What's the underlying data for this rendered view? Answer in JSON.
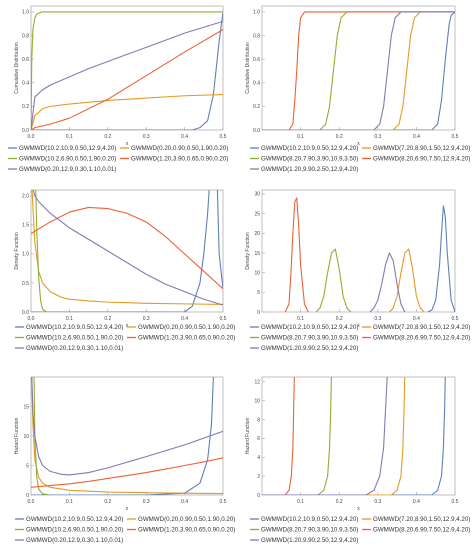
{
  "colors": {
    "blue": "#5e81b5",
    "orange": "#e19c24",
    "green": "#8fb032",
    "red": "#eb6235",
    "purple": "#8778b3",
    "frame": "#b0b0b0",
    "text": "#444444"
  },
  "legend_left": [
    {
      "label": "GWMWD(10.2,10.9,0.50,12.9,4.20)",
      "color": "blue"
    },
    {
      "label": "GWMWD(0.20,0.90,0.50,1.90,0.20)",
      "color": "orange"
    },
    {
      "label": "GWMWD(10.2,6.90,0.50,1.90,0.20)",
      "color": "green"
    },
    {
      "label": "GWMWD(1.20,3.90,0.65,0.90,0.20)",
      "color": "red"
    },
    {
      "label": "GWMWD(0.20,12.9,0.30,1.10,0.01)",
      "color": "purple"
    }
  ],
  "legend_right": [
    {
      "label": "GWMWD(10.2,10.9,0.50,12.9,4.20)",
      "color": "blue"
    },
    {
      "label": "GWMWD(7.20,8.90,1.50,12.9,4.20)",
      "color": "orange"
    },
    {
      "label": "GWMWD(8.20,7.90,3.90,10.9,3.50)",
      "color": "green"
    },
    {
      "label": "GWMWD(8.20,6.90,7.50,12.9,4.20)",
      "color": "red"
    },
    {
      "label": "GWMWD(1.20,9.90,2.50,12.9,4.20)",
      "color": "purple"
    }
  ],
  "chart_data": [
    {
      "type": "line",
      "ylabel": "Cumulative Distribution",
      "xlabel": "x",
      "xlim": [
        0,
        0.5
      ],
      "ylim": [
        0,
        1.05
      ],
      "x_ticks": [
        "0.0",
        "0.1",
        "0.2",
        "0.3",
        "0.4",
        "0.5"
      ],
      "y_ticks": [
        "0.0",
        "0.2",
        "0.4",
        "0.6",
        "0.8",
        "1.0"
      ],
      "series": [
        {
          "color": "blue",
          "x": [
            0,
            0.42,
            0.44,
            0.46,
            0.475,
            0.49,
            0.5
          ],
          "y": [
            0,
            0,
            0.02,
            0.08,
            0.3,
            0.75,
            1.0
          ]
        },
        {
          "color": "orange",
          "x": [
            0,
            0.01,
            0.03,
            0.05,
            0.1,
            0.2,
            0.3,
            0.4,
            0.5
          ],
          "y": [
            0,
            0.12,
            0.18,
            0.2,
            0.22,
            0.25,
            0.27,
            0.29,
            0.3
          ]
        },
        {
          "color": "green",
          "x": [
            0,
            0.002,
            0.005,
            0.01,
            0.015,
            0.02,
            0.03,
            0.5
          ],
          "y": [
            0,
            0.6,
            0.85,
            0.95,
            0.98,
            0.99,
            1.0,
            1.0
          ]
        },
        {
          "color": "red",
          "x": [
            0,
            0.01,
            0.05,
            0.1,
            0.2,
            0.3,
            0.4,
            0.5
          ],
          "y": [
            0,
            0.02,
            0.05,
            0.1,
            0.26,
            0.46,
            0.66,
            0.85
          ]
        },
        {
          "color": "purple",
          "x": [
            0,
            0.01,
            0.03,
            0.05,
            0.1,
            0.15,
            0.2,
            0.25,
            0.3,
            0.35,
            0.4,
            0.45,
            0.5
          ],
          "y": [
            0,
            0.28,
            0.34,
            0.38,
            0.45,
            0.52,
            0.58,
            0.64,
            0.7,
            0.76,
            0.82,
            0.87,
            0.92
          ]
        }
      ]
    },
    {
      "type": "line",
      "ylabel": "Cumulative Distribution",
      "xlabel": "x",
      "xlim": [
        0,
        0.5
      ],
      "ylim": [
        0,
        1.05
      ],
      "x_ticks": [
        "0.1",
        "0.2",
        "0.3",
        "0.4",
        "0.5"
      ],
      "y_ticks": [
        "0.0",
        "0.2",
        "0.4",
        "0.6",
        "0.8",
        "1.0"
      ],
      "series": [
        {
          "color": "blue",
          "x": [
            0,
            0.44,
            0.455,
            0.465,
            0.475,
            0.485,
            0.49,
            0.5
          ],
          "y": [
            0,
            0,
            0.05,
            0.25,
            0.6,
            0.9,
            0.97,
            1.0
          ]
        },
        {
          "color": "orange",
          "x": [
            0,
            0.34,
            0.355,
            0.365,
            0.375,
            0.385,
            0.395,
            0.41,
            0.5
          ],
          "y": [
            0,
            0,
            0.05,
            0.2,
            0.5,
            0.8,
            0.95,
            1.0,
            1.0
          ]
        },
        {
          "color": "green",
          "x": [
            0,
            0.15,
            0.165,
            0.175,
            0.185,
            0.195,
            0.205,
            0.22,
            0.5
          ],
          "y": [
            0,
            0,
            0.05,
            0.2,
            0.5,
            0.8,
            0.95,
            1.0,
            1.0
          ]
        },
        {
          "color": "red",
          "x": [
            0,
            0.07,
            0.08,
            0.085,
            0.09,
            0.095,
            0.1,
            0.11,
            0.5
          ],
          "y": [
            0,
            0,
            0.05,
            0.25,
            0.5,
            0.8,
            0.95,
            1.0,
            1.0
          ]
        },
        {
          "color": "purple",
          "x": [
            0,
            0.29,
            0.305,
            0.315,
            0.325,
            0.335,
            0.345,
            0.36,
            0.5
          ],
          "y": [
            0,
            0,
            0.05,
            0.2,
            0.5,
            0.8,
            0.95,
            1.0,
            1.0
          ]
        }
      ]
    },
    {
      "type": "line",
      "ylabel": "Density Function",
      "xlabel": "x",
      "xlim": [
        0,
        0.5
      ],
      "ylim": [
        0,
        2.1
      ],
      "x_ticks": [
        "0.0",
        "0.1",
        "0.2",
        "0.3",
        "0.4",
        "0.5"
      ],
      "y_ticks": [
        "0.0",
        "0.5",
        "1.0",
        "1.5",
        "2.0"
      ],
      "series": [
        {
          "color": "blue",
          "x": [
            0,
            0.4,
            0.42,
            0.44,
            0.45,
            0.46,
            0.465
          ],
          "y": [
            0,
            0,
            0.1,
            0.5,
            1.0,
            1.7,
            2.2
          ]
        },
        {
          "color": "blue",
          "x": [
            0.485,
            0.49,
            0.5
          ],
          "y": [
            2.2,
            1.0,
            0.4
          ]
        },
        {
          "color": "orange",
          "x": [
            0.002,
            0.005,
            0.01,
            0.02,
            0.03,
            0.05,
            0.08,
            0.1,
            0.15,
            0.2,
            0.3,
            0.4,
            0.5
          ],
          "y": [
            2.2,
            1.8,
            1.2,
            0.7,
            0.5,
            0.35,
            0.25,
            0.22,
            0.19,
            0.17,
            0.15,
            0.14,
            0.13
          ]
        },
        {
          "color": "green",
          "x": [
            0.012,
            0.015,
            0.02,
            0.025,
            0.03,
            0.04
          ],
          "y": [
            2.2,
            1.4,
            0.6,
            0.2,
            0.05,
            0
          ]
        },
        {
          "color": "red",
          "x": [
            0,
            0.05,
            0.1,
            0.15,
            0.2,
            0.25,
            0.3,
            0.35,
            0.4,
            0.45,
            0.5
          ],
          "y": [
            1.35,
            1.55,
            1.72,
            1.8,
            1.78,
            1.7,
            1.55,
            1.3,
            1.0,
            0.7,
            0.4
          ]
        },
        {
          "color": "purple",
          "x": [
            0.002,
            0.01,
            0.02,
            0.05,
            0.1,
            0.15,
            0.2,
            0.25,
            0.3,
            0.35,
            0.4,
            0.45,
            0.5
          ],
          "y": [
            2.2,
            2.0,
            1.9,
            1.7,
            1.45,
            1.25,
            1.05,
            0.85,
            0.65,
            0.48,
            0.35,
            0.22,
            0.12
          ]
        }
      ]
    },
    {
      "type": "line",
      "ylabel": "Density Function",
      "xlabel": "x",
      "xlim": [
        0,
        0.5
      ],
      "ylim": [
        0,
        31
      ],
      "x_ticks": [
        "0.1",
        "0.2",
        "0.3",
        "0.4",
        "0.5"
      ],
      "y_ticks": [
        "0",
        "5",
        "10",
        "15",
        "20",
        "25",
        "30"
      ],
      "series": [
        {
          "color": "blue",
          "x": [
            0.43,
            0.44,
            0.45,
            0.46,
            0.465,
            0.47,
            0.475,
            0.48,
            0.49,
            0.5
          ],
          "y": [
            0,
            0.5,
            3,
            12,
            20,
            27,
            24,
            15,
            3,
            0
          ]
        },
        {
          "color": "orange",
          "x": [
            0.33,
            0.34,
            0.35,
            0.36,
            0.37,
            0.38,
            0.39,
            0.4,
            0.41,
            0.42
          ],
          "y": [
            0,
            1,
            4,
            10,
            15,
            16,
            11,
            4,
            1,
            0
          ]
        },
        {
          "color": "green",
          "x": [
            0.14,
            0.15,
            0.16,
            0.17,
            0.18,
            0.19,
            0.2,
            0.21,
            0.22,
            0.23
          ],
          "y": [
            0,
            1,
            4,
            10,
            15,
            16,
            11,
            4,
            1,
            0
          ]
        },
        {
          "color": "red",
          "x": [
            0.06,
            0.07,
            0.075,
            0.08,
            0.085,
            0.09,
            0.095,
            0.1,
            0.11,
            0.12
          ],
          "y": [
            0,
            2,
            10,
            20,
            28,
            29,
            22,
            12,
            2,
            0
          ]
        },
        {
          "color": "purple",
          "x": [
            0.28,
            0.29,
            0.3,
            0.31,
            0.32,
            0.33,
            0.34,
            0.35,
            0.36,
            0.37
          ],
          "y": [
            0,
            1,
            3,
            7,
            12,
            15,
            13,
            7,
            2,
            0
          ]
        }
      ]
    },
    {
      "type": "line",
      "ylabel": "Hazard Function",
      "xlabel": "x",
      "xlim": [
        0,
        0.5
      ],
      "ylim": [
        0,
        20
      ],
      "x_ticks": [
        "0.0",
        "0.1",
        "0.2",
        "0.3",
        "0.4",
        "0.5"
      ],
      "y_ticks": [
        "0",
        "5",
        "10",
        "15"
      ],
      "series": [
        {
          "color": "blue",
          "x": [
            0,
            0.3,
            0.4,
            0.44,
            0.46,
            0.47,
            0.475
          ],
          "y": [
            0,
            0,
            0.3,
            2,
            6,
            12,
            20
          ]
        },
        {
          "color": "orange",
          "x": [
            0.002,
            0.005,
            0.01,
            0.02,
            0.03,
            0.05,
            0.1,
            0.2,
            0.3,
            0.4,
            0.5
          ],
          "y": [
            20,
            12,
            6,
            3,
            2,
            1.3,
            0.8,
            0.5,
            0.4,
            0.3,
            0.25
          ]
        },
        {
          "color": "green",
          "x": [
            0.008,
            0.01,
            0.015,
            0.02,
            0.03,
            0.05
          ],
          "y": [
            20,
            10,
            3,
            1,
            0.2,
            0
          ]
        },
        {
          "color": "red",
          "x": [
            0,
            0.05,
            0.1,
            0.15,
            0.2,
            0.25,
            0.3,
            0.35,
            0.4,
            0.45,
            0.5
          ],
          "y": [
            1.3,
            1.6,
            1.9,
            2.3,
            2.8,
            3.3,
            3.8,
            4.4,
            5.0,
            5.6,
            6.3
          ]
        },
        {
          "color": "purple",
          "x": [
            0.002,
            0.005,
            0.01,
            0.02,
            0.03,
            0.05,
            0.08,
            0.1,
            0.15,
            0.2,
            0.3,
            0.4,
            0.5
          ],
          "y": [
            20,
            14,
            10,
            6.5,
            5,
            4,
            3.5,
            3.4,
            3.8,
            4.6,
            6.5,
            8.5,
            10.8
          ]
        }
      ]
    },
    {
      "type": "line",
      "ylabel": "Hazard Function",
      "xlabel": "x",
      "xlim": [
        0,
        0.5
      ],
      "ylim": [
        0,
        12.5
      ],
      "x_ticks": [
        "0.1",
        "0.2",
        "0.3",
        "0.4",
        "0.5"
      ],
      "y_ticks": [
        "0",
        "2",
        "4",
        "6",
        "8",
        "10",
        "12"
      ],
      "series": [
        {
          "color": "blue",
          "x": [
            0,
            0.44,
            0.455,
            0.465,
            0.47,
            0.473,
            0.475
          ],
          "y": [
            0,
            0,
            0.5,
            2,
            5,
            9,
            13
          ]
        },
        {
          "color": "orange",
          "x": [
            0,
            0.335,
            0.35,
            0.36,
            0.365,
            0.368,
            0.37
          ],
          "y": [
            0,
            0,
            0.5,
            2,
            5,
            9,
            13
          ]
        },
        {
          "color": "green",
          "x": [
            0,
            0.145,
            0.16,
            0.17,
            0.175,
            0.178,
            0.18
          ],
          "y": [
            0,
            0,
            0.5,
            2,
            5,
            9,
            13
          ]
        },
        {
          "color": "red",
          "x": [
            0,
            0.06,
            0.07,
            0.076,
            0.08,
            0.082,
            0.084
          ],
          "y": [
            0,
            0,
            0.5,
            2,
            5,
            9,
            13
          ]
        },
        {
          "color": "purple",
          "x": [
            0,
            0.27,
            0.29,
            0.305,
            0.315,
            0.32,
            0.325
          ],
          "y": [
            0,
            0,
            0.5,
            2,
            5,
            9,
            13
          ]
        }
      ]
    }
  ]
}
